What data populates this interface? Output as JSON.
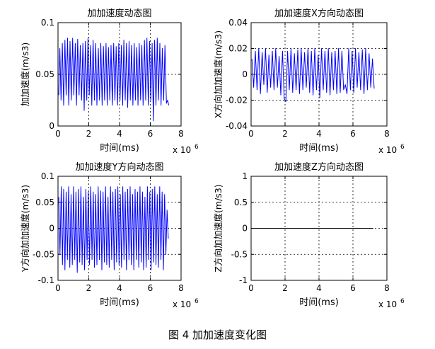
{
  "figure": {
    "caption": "图 4  加加速度变化图"
  },
  "chart_data": [
    {
      "type": "line",
      "title": "加加速度动态图",
      "xlabel": "时间(ms)",
      "ylabel": "加加速度(m/s3)",
      "x_multiplier": "x 10",
      "x_multiplier_exp": "6",
      "xlim": [
        0,
        8
      ],
      "ylim": [
        0,
        0.1
      ],
      "xticks": [
        "0",
        "2",
        "4",
        "6",
        "8"
      ],
      "yticks": [
        "0",
        "0.05",
        "0.1"
      ],
      "grid": true,
      "color": "#0000ff",
      "series": [
        {
          "x": [
            0.05,
            0.12,
            0.2,
            0.28,
            0.37,
            0.45,
            0.53,
            0.62,
            0.7,
            0.78,
            0.86,
            0.95,
            1.03,
            1.12,
            1.2,
            1.28,
            1.37,
            1.45,
            1.53,
            1.62,
            1.7,
            1.78,
            1.87,
            1.95,
            2.03,
            2.12,
            2.2,
            2.28,
            2.37,
            2.45,
            2.53,
            2.62,
            2.7,
            2.78,
            2.87,
            2.95,
            3.03,
            3.12,
            3.2,
            3.28,
            3.37,
            3.45,
            3.53,
            3.62,
            3.7,
            3.78,
            3.87,
            3.95,
            4.03,
            4.12,
            4.2,
            4.28,
            4.37,
            4.45,
            4.53,
            4.62,
            4.7,
            4.78,
            4.87,
            4.95,
            5.03,
            5.12,
            5.2,
            5.28,
            5.37,
            5.45,
            5.53,
            5.62,
            5.7,
            5.78,
            5.87,
            5.95,
            6.03,
            6.12,
            6.2,
            6.28,
            6.37,
            6.45,
            6.53,
            6.62,
            6.7,
            6.78,
            6.87,
            6.95,
            7.05,
            7.12,
            7.2
          ],
          "y": [
            0.03,
            0.075,
            0.025,
            0.08,
            0.02,
            0.083,
            0.03,
            0.085,
            0.02,
            0.082,
            0.025,
            0.085,
            0.03,
            0.08,
            0.02,
            0.084,
            0.03,
            0.078,
            0.025,
            0.08,
            0.015,
            0.082,
            0.025,
            0.085,
            0.03,
            0.078,
            0.02,
            0.083,
            0.025,
            0.08,
            0.02,
            0.075,
            0.025,
            0.08,
            0.02,
            0.077,
            0.025,
            0.08,
            0.02,
            0.076,
            0.025,
            0.078,
            0.02,
            0.08,
            0.025,
            0.077,
            0.02,
            0.08,
            0.025,
            0.078,
            0.02,
            0.083,
            0.025,
            0.08,
            0.018,
            0.082,
            0.025,
            0.078,
            0.02,
            0.08,
            0.025,
            0.076,
            0.02,
            0.08,
            0.025,
            0.078,
            0.02,
            0.083,
            0.025,
            0.085,
            0.02,
            0.082,
            0.025,
            0.08,
            0.005,
            0.083,
            0.02,
            0.085,
            0.025,
            0.08,
            0.02,
            0.075,
            0.025,
            0.078,
            0.022,
            0.025,
            0.02
          ]
        }
      ]
    },
    {
      "type": "line",
      "title": "加加速度X方向动态图",
      "xlabel": "时间(ms)",
      "ylabel": "X方向加加速度(m/s3)",
      "x_multiplier": "x 10",
      "x_multiplier_exp": "6",
      "xlim": [
        0,
        8
      ],
      "ylim": [
        -0.04,
        0.04
      ],
      "xticks": [
        "0",
        "2",
        "4",
        "6",
        "8"
      ],
      "yticks": [
        "-0.04",
        "-0.02",
        "0",
        "0.02",
        "0.04"
      ],
      "grid": true,
      "color": "#0000ff",
      "series": [
        {
          "x": [
            0.05,
            0.15,
            0.25,
            0.35,
            0.45,
            0.55,
            0.65,
            0.75,
            0.85,
            0.95,
            1.05,
            1.15,
            1.25,
            1.35,
            1.45,
            1.55,
            1.65,
            1.75,
            1.85,
            1.95,
            2.05,
            2.15,
            2.25,
            2.35,
            2.45,
            2.55,
            2.65,
            2.75,
            2.85,
            2.95,
            3.05,
            3.15,
            3.25,
            3.35,
            3.45,
            3.55,
            3.65,
            3.75,
            3.85,
            3.95,
            4.05,
            4.15,
            4.25,
            4.35,
            4.45,
            4.55,
            4.65,
            4.75,
            4.85,
            4.95,
            5.05,
            5.15,
            5.25,
            5.35,
            5.45,
            5.55,
            5.65,
            5.75,
            5.85,
            5.95,
            6.05,
            6.15,
            6.25,
            6.35,
            6.45,
            6.55,
            6.65,
            6.75,
            6.85,
            6.95,
            7.05,
            7.15,
            7.25
          ],
          "y": [
            0.012,
            -0.01,
            0.018,
            -0.012,
            0.02,
            -0.015,
            0.017,
            -0.008,
            0.02,
            -0.014,
            0.015,
            -0.01,
            0.018,
            -0.012,
            0.02,
            -0.01,
            0.014,
            -0.016,
            0.018,
            -0.019,
            -0.021,
            0.018,
            -0.012,
            0.02,
            -0.014,
            0.016,
            -0.012,
            0.019,
            -0.015,
            0.02,
            -0.012,
            0.017,
            -0.01,
            0.02,
            -0.014,
            0.018,
            -0.016,
            0.02,
            -0.012,
            0.015,
            -0.018,
            0.02,
            -0.012,
            0.018,
            -0.014,
            0.02,
            -0.016,
            0.017,
            -0.012,
            0.018,
            -0.015,
            0.02,
            -0.014,
            0.018,
            -0.012,
            -0.008,
            -0.015,
            0.02,
            -0.012,
            0.018,
            -0.014,
            0.02,
            -0.01,
            0.017,
            -0.012,
            0.019,
            -0.015,
            0.02,
            -0.012,
            0.016,
            -0.01,
            0.012,
            -0.011
          ]
        }
      ]
    },
    {
      "type": "line",
      "title": "加加速度Y方向动态图",
      "xlabel": "时间(ms)",
      "ylabel": "Y方向加加速度(m/s3)",
      "x_multiplier": "x 10",
      "x_multiplier_exp": "6",
      "xlim": [
        0,
        8
      ],
      "ylim": [
        -0.1,
        0.1
      ],
      "xticks": [
        "0",
        "2",
        "4",
        "6",
        "8"
      ],
      "yticks": [
        "-0.1",
        "-0.05",
        "0",
        "0.05",
        "0.1"
      ],
      "grid": true,
      "color": "#0000ff",
      "series": [
        {
          "x": [
            0.05,
            0.13,
            0.21,
            0.29,
            0.37,
            0.45,
            0.53,
            0.61,
            0.69,
            0.77,
            0.85,
            0.93,
            1.01,
            1.09,
            1.17,
            1.25,
            1.33,
            1.41,
            1.49,
            1.57,
            1.65,
            1.73,
            1.81,
            1.89,
            1.97,
            2.05,
            2.13,
            2.21,
            2.29,
            2.37,
            2.45,
            2.53,
            2.61,
            2.69,
            2.77,
            2.85,
            2.93,
            3.01,
            3.09,
            3.17,
            3.25,
            3.33,
            3.41,
            3.49,
            3.57,
            3.65,
            3.73,
            3.81,
            3.89,
            3.97,
            4.05,
            4.13,
            4.21,
            4.29,
            4.37,
            4.45,
            4.53,
            4.61,
            4.69,
            4.77,
            4.85,
            4.93,
            5.01,
            5.09,
            5.17,
            5.25,
            5.33,
            5.41,
            5.49,
            5.57,
            5.65,
            5.73,
            5.81,
            5.89,
            5.97,
            6.05,
            6.13,
            6.21,
            6.29,
            6.37,
            6.45,
            6.53,
            6.61,
            6.69,
            6.77,
            6.85,
            6.93,
            7.01,
            7.09,
            7.17
          ],
          "y": [
            0.06,
            -0.05,
            0.08,
            -0.07,
            0.075,
            -0.08,
            0.07,
            -0.06,
            0.08,
            -0.075,
            0.065,
            -0.07,
            0.08,
            -0.06,
            0.07,
            -0.085,
            0.075,
            -0.065,
            0.08,
            -0.07,
            0.06,
            -0.08,
            0.075,
            -0.06,
            0.07,
            -0.07,
            0.08,
            -0.06,
            0.07,
            -0.075,
            0.065,
            -0.07,
            0.08,
            -0.06,
            0.072,
            -0.08,
            0.07,
            -0.065,
            0.08,
            -0.07,
            0.06,
            -0.075,
            0.08,
            -0.06,
            0.07,
            -0.08,
            0.075,
            -0.065,
            0.08,
            -0.07,
            0.065,
            -0.075,
            0.08,
            -0.06,
            0.07,
            -0.08,
            0.075,
            -0.06,
            0.08,
            -0.07,
            0.065,
            -0.08,
            0.075,
            -0.06,
            0.07,
            -0.075,
            0.08,
            -0.065,
            0.07,
            -0.08,
            0.06,
            -0.075,
            0.08,
            -0.06,
            0.07,
            -0.08,
            0.075,
            -0.065,
            0.08,
            -0.07,
            0.065,
            -0.075,
            0.08,
            -0.06,
            0.07,
            -0.08,
            0.065,
            -0.05,
            0.035,
            -0.02
          ]
        }
      ]
    },
    {
      "type": "line",
      "title": "加加速度Z方向动态图",
      "xlabel": "时间(ms)",
      "ylabel": "Z方向加加速度(m/s3)",
      "x_multiplier": "x 10",
      "x_multiplier_exp": "6",
      "xlim": [
        0,
        8
      ],
      "ylim": [
        -1,
        1
      ],
      "xticks": [
        "0",
        "2",
        "4",
        "6",
        "8"
      ],
      "yticks": [
        "-1",
        "-0.5",
        "0",
        "0.5",
        "1"
      ],
      "grid": true,
      "color": "#000000",
      "series": [
        {
          "x": [
            0,
            7.2
          ],
          "y": [
            0,
            0
          ]
        }
      ]
    }
  ]
}
